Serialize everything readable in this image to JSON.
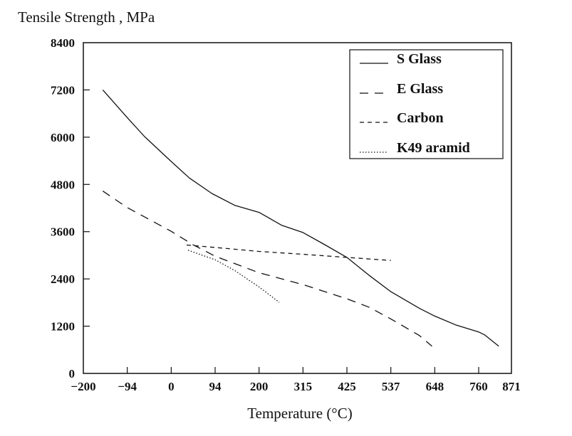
{
  "chart_data": {
    "type": "line",
    "title": "Tensile Strength , MPa",
    "xlabel": "Temperature (°C)",
    "ylabel": "Tensile Strength , MPa",
    "x_ticks": [
      -200,
      -94,
      0,
      94,
      200,
      315,
      425,
      537,
      648,
      760,
      871
    ],
    "y_ticks": [
      0,
      1200,
      2400,
      3600,
      4800,
      6000,
      7200,
      8400
    ],
    "xlim": [
      -200,
      871
    ],
    "ylim": [
      0,
      8400
    ],
    "grid": false,
    "legend_position": "top-right",
    "series": [
      {
        "name": "S Glass",
        "style": "solid",
        "x": [
          -153,
          -94,
          -57,
          0,
          39,
          87,
          141,
          200,
          260,
          315,
          368,
          425,
          481,
          537,
          609,
          648,
          701,
          760,
          780,
          828
        ],
        "y": [
          7200,
          6496,
          6015,
          5383,
          4962,
          4571,
          4271,
          4090,
          3759,
          3579,
          3278,
          2947,
          2496,
          2075,
          1654,
          1456,
          1233,
          1053,
          980,
          692
        ]
      },
      {
        "name": "E Glass",
        "style": "long-dash",
        "x": [
          -153,
          -94,
          0,
          45,
          94,
          200,
          315,
          425,
          481,
          537,
          609,
          641
        ],
        "y": [
          4632,
          4211,
          3609,
          3278,
          2977,
          2556,
          2256,
          1895,
          1684,
          1383,
          962,
          692
        ]
      },
      {
        "name": "Carbon",
        "style": "short-dash",
        "x": [
          33,
          94,
          200,
          315,
          425,
          537
        ],
        "y": [
          3260,
          3200,
          3098,
          3025,
          2947,
          2869
        ]
      },
      {
        "name": "K49 aramid",
        "style": "dotted",
        "x": [
          36,
          94,
          141,
          200,
          253
        ],
        "y": [
          3128,
          2887,
          2616,
          2195,
          1805
        ]
      }
    ]
  }
}
